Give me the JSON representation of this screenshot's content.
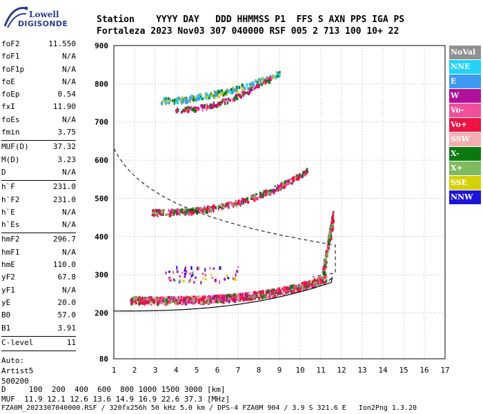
{
  "logo": {
    "line1": "Lowell",
    "line2": "DIGISONDE"
  },
  "header": {
    "columns": "Station    YYYY DAY   DDD HHMMSS P1  FFS S AXN PPS IGA PS",
    "values": "Fortaleza 2023 Nov03 307 040000 RSF 005 2 713 100 10+ 22"
  },
  "params": {
    "group1": [
      {
        "label": "foF2",
        "value": "11.550"
      },
      {
        "label": "foF1",
        "value": "N/A"
      },
      {
        "label": "foF1p",
        "value": "N/A"
      },
      {
        "label": "foE",
        "value": "N/A"
      },
      {
        "label": "foEp",
        "value": "0.54"
      },
      {
        "label": "fxI",
        "value": "11.90"
      },
      {
        "label": "foEs",
        "value": "N/A"
      },
      {
        "label": "fmin",
        "value": "3.75"
      }
    ],
    "group2": [
      {
        "label": "MUF(D)",
        "value": "37.32"
      },
      {
        "label": "M(D)",
        "value": "3.23"
      },
      {
        "label": "D",
        "value": "N/A"
      }
    ],
    "group3": [
      {
        "label": "h`F",
        "value": "231.0"
      },
      {
        "label": "h`F2",
        "value": "231.0"
      },
      {
        "label": "h`E",
        "value": "N/A"
      },
      {
        "label": "h`Es",
        "value": "N/A"
      }
    ],
    "group4": [
      {
        "label": "hmF2",
        "value": "296.7"
      },
      {
        "label": "hmF1",
        "value": "N/A"
      },
      {
        "label": "hmE",
        "value": "110.0"
      },
      {
        "label": "yF2",
        "value": "67.8"
      },
      {
        "label": "yF1",
        "value": "N/A"
      },
      {
        "label": "yE",
        "value": "20.0"
      },
      {
        "label": "B0",
        "value": "57.0"
      },
      {
        "label": "B1",
        "value": "3.91"
      }
    ],
    "group5": [
      {
        "label": "C-level",
        "value": "11"
      }
    ],
    "auto": [
      "Auto:",
      "Artist5",
      "500200"
    ]
  },
  "legend": [
    {
      "label": "NoVal",
      "color": "#909090"
    },
    {
      "label": "NNE",
      "color": "#22d3f5"
    },
    {
      "label": "E",
      "color": "#3c9af0"
    },
    {
      "label": "W",
      "color": "#b0109a"
    },
    {
      "label": "Vo-",
      "color": "#f0509a"
    },
    {
      "label": "Vo+",
      "color": "#ee1144"
    },
    {
      "label": "SSW",
      "color": "#f5aeb0"
    },
    {
      "label": "X-",
      "color": "#0a7a10"
    },
    {
      "label": "X+",
      "color": "#7fb960"
    },
    {
      "label": "SSE",
      "color": "#d4d00a"
    },
    {
      "label": "NNW",
      "color": "#1e14d8"
    }
  ],
  "axes": {
    "x_ticks": [
      "1",
      "2",
      "3",
      "4",
      "5",
      "6",
      "7",
      "8",
      "9",
      "10",
      "11",
      "12",
      "13",
      "14",
      "15",
      "16",
      "17"
    ],
    "y_ticks": [
      "80",
      "200",
      "300",
      "400",
      "500",
      "600",
      "700",
      "800",
      "900"
    ]
  },
  "footer": {
    "line1": "D     100  200  400  600  800 1000 1500 3000 [km]",
    "line2": "MUF  11.9 12.1 12.6 13.6 14.9 16.9 22.6 37.3 [MHz]",
    "line3": "FZA0M_2023307040000.RSF / 320fx256h 50 kHz 5.0 km / DPS-4 FZA0M 904 / 3.9 S 321.6 E   Ion2Png 1.3.20"
  }
}
